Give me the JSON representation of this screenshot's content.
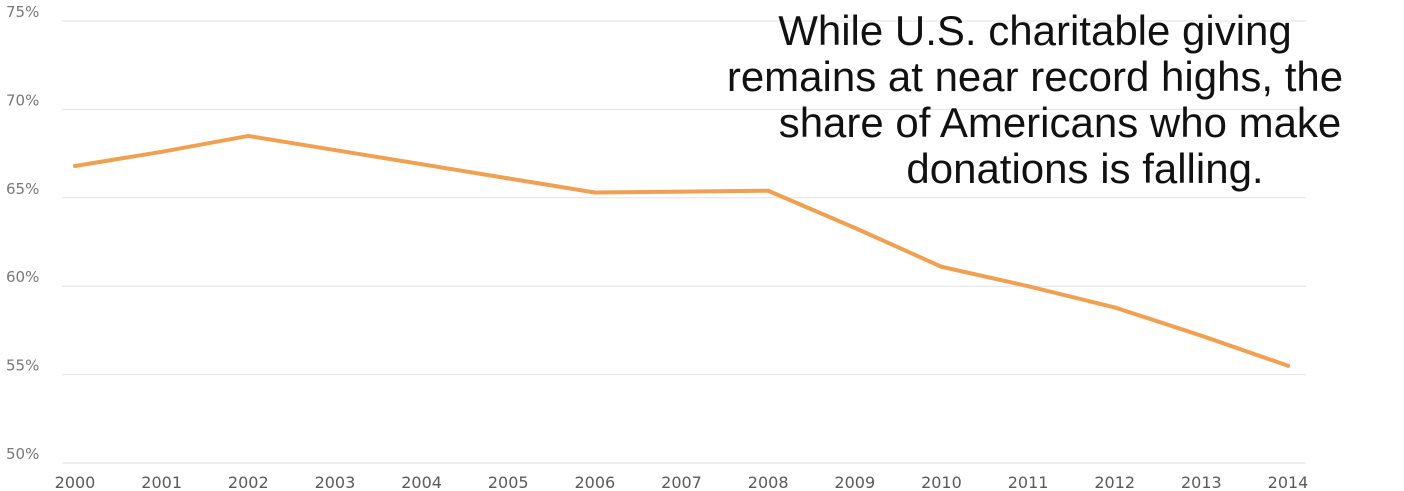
{
  "chart_data": {
    "type": "line",
    "x": [
      "2000",
      "2001",
      "2002",
      "2003",
      "2004",
      "2005",
      "2006",
      "2007",
      "2008",
      "2009",
      "2010",
      "2011",
      "2012",
      "2013",
      "2014"
    ],
    "series": [
      {
        "values": [
          66.8,
          67.6,
          68.5,
          67.7,
          66.9,
          66.1,
          65.3,
          65.35,
          65.4,
          63.3,
          61.1,
          60.0,
          58.8,
          57.2,
          55.5
        ],
        "color": "#f0a050"
      }
    ],
    "yticks": [
      "50%",
      "55%",
      "60%",
      "65%",
      "70%",
      "75%"
    ],
    "ylim": [
      50,
      75
    ],
    "grid": true,
    "title": "",
    "xlabel": "",
    "ylabel": ""
  },
  "annotation": {
    "lines": [
      "While U.S. charitable giving",
      "remains at near record highs, the",
      "share of Americans who make",
      "donations is falling."
    ]
  }
}
